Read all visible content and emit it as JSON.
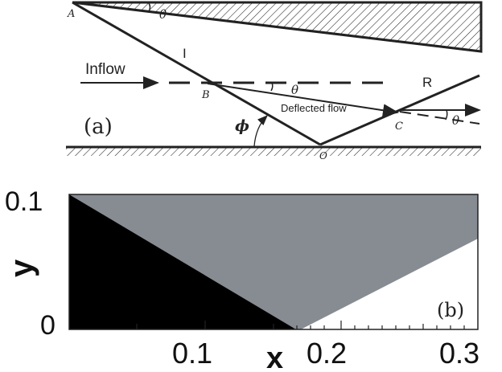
{
  "panel_a": {
    "label": "(a)",
    "points": {
      "A": "A",
      "B": "B",
      "C": "C",
      "O": "O"
    },
    "angle_theta": "θ",
    "angle_phi": "ϕ",
    "incident_shock": "I",
    "reflected_shock": "R",
    "inflow": "Inflow",
    "deflected_flow": "Deflected flow"
  },
  "panel_b": {
    "label": "(b)",
    "x_axis_label": "x",
    "y_axis_label": "y",
    "x_ticks": [
      "0.1",
      "0.2",
      "0.3"
    ],
    "y_ticks": [
      "0.1",
      "0"
    ],
    "region_colors": {
      "pre_shock": "#000000",
      "post_incident": "#878c93",
      "post_reflected": "#ffffff"
    }
  }
}
